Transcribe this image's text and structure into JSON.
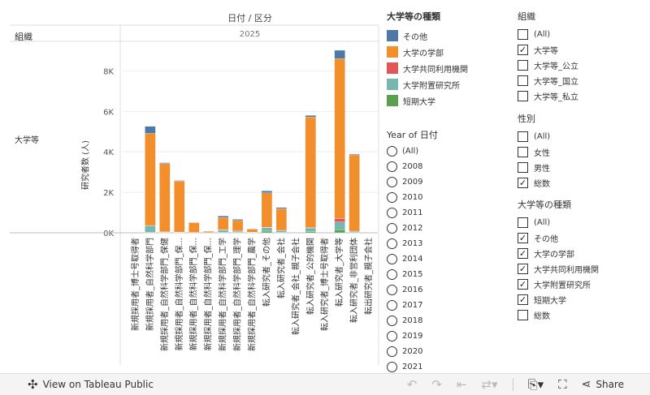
{
  "header": {
    "title": "日付 / 区分",
    "year": "2025",
    "row_header": "組織",
    "row_label": "大学等"
  },
  "yaxis_title": "研究者数 (人)",
  "colors": {
    "sonota": "#4e79a7",
    "gakubu": "#f28e2b",
    "kyodo": "#e15759",
    "fuzoku": "#76b7b2",
    "tanki": "#59a14f"
  },
  "chart_data": {
    "type": "bar",
    "stacked": true,
    "categories": [
      "新規採用者_博士号取得者",
      "新規採用者_自然科学部門",
      "新規採用者_自然科学部門_保健",
      "新規採用者_自然科学部門_保...",
      "新規採用者_自然科学部門_保...",
      "新規採用者_自然科学部門_保...",
      "新規採用者_自然科学部門_工学",
      "新規採用者_自然科学部門_理学",
      "新規採用者_自然科学部門_農学",
      "転入研究者_その他",
      "転入研究者_会社",
      "転入研究者_会社_親子会社",
      "転入研究者_公的機関",
      "転入研究者_博士号取得者",
      "転入研究者_大学等",
      "転入研究者_非営利団体",
      "転出研究者_親子会社"
    ],
    "series": [
      {
        "name": "その他",
        "values": [
          0,
          350,
          40,
          30,
          10,
          5,
          80,
          60,
          20,
          100,
          60,
          0,
          80,
          0,
          420,
          40,
          0
        ]
      },
      {
        "name": "大学の学部",
        "values": [
          0,
          4550,
          3380,
          2520,
          490,
          70,
          600,
          520,
          150,
          1700,
          1070,
          0,
          5450,
          0,
          7900,
          3770,
          0
        ]
      },
      {
        "name": "大学共同利用機関",
        "values": [
          0,
          10,
          5,
          5,
          0,
          0,
          10,
          5,
          0,
          20,
          10,
          0,
          30,
          0,
          170,
          10,
          0
        ]
      },
      {
        "name": "大学附置研究所",
        "values": [
          0,
          330,
          30,
          20,
          10,
          5,
          120,
          60,
          20,
          170,
          90,
          0,
          180,
          0,
          380,
          50,
          0
        ]
      },
      {
        "name": "短期大学",
        "values": [
          0,
          20,
          10,
          10,
          5,
          0,
          20,
          20,
          10,
          80,
          20,
          0,
          60,
          0,
          150,
          20,
          0
        ]
      }
    ],
    "yticks": [
      {
        "value": 0,
        "label": "0K"
      },
      {
        "value": 2000,
        "label": "2K"
      },
      {
        "value": 4000,
        "label": "4K"
      },
      {
        "value": 6000,
        "label": "6K"
      },
      {
        "value": 8000,
        "label": "8K"
      }
    ],
    "ylim": [
      0,
      9500
    ]
  },
  "legend": {
    "title": "大学等の種類",
    "items": [
      {
        "label": "その他",
        "color": "#4e79a7"
      },
      {
        "label": "大学の学部",
        "color": "#f28e2b"
      },
      {
        "label": "大学共同利用機関",
        "color": "#e15759"
      },
      {
        "label": "大学附置研究所",
        "color": "#76b7b2"
      },
      {
        "label": "短期大学",
        "color": "#59a14f"
      }
    ]
  },
  "year_filter": {
    "title": "Year of 日付",
    "options": [
      "(All)",
      "2008",
      "2009",
      "2010",
      "2011",
      "2012",
      "2013",
      "2014",
      "2015",
      "2016",
      "2017",
      "2018",
      "2019",
      "2020",
      "2021"
    ]
  },
  "org_filter": {
    "title": "組織",
    "options": [
      {
        "label": "(All)",
        "checked": false
      },
      {
        "label": "大学等",
        "checked": true
      },
      {
        "label": "大学等_公立",
        "checked": false
      },
      {
        "label": "大学等_国立",
        "checked": false
      },
      {
        "label": "大学等_私立",
        "checked": false
      }
    ]
  },
  "sex_filter": {
    "title": "性別",
    "options": [
      {
        "label": "(All)",
        "checked": false
      },
      {
        "label": "女性",
        "checked": false
      },
      {
        "label": "男性",
        "checked": false
      },
      {
        "label": "総数",
        "checked": true
      }
    ]
  },
  "type_filter": {
    "title": "大学等の種類",
    "options": [
      {
        "label": "(All)",
        "checked": false
      },
      {
        "label": "その他",
        "checked": true
      },
      {
        "label": "大学の学部",
        "checked": true
      },
      {
        "label": "大学共同利用機関",
        "checked": true
      },
      {
        "label": "大学附置研究所",
        "checked": true
      },
      {
        "label": "短期大学",
        "checked": true
      },
      {
        "label": "総数",
        "checked": false
      }
    ]
  },
  "toolbar": {
    "view_label": "View on Tableau Public",
    "share_label": "Share"
  }
}
